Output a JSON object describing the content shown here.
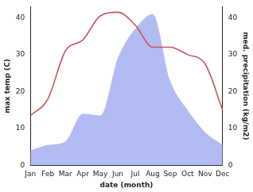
{
  "chart_data": {
    "type": "line",
    "x_label": "date (month)",
    "y_label": "max temp (C)",
    "y2_label": "med. precipitation (kg/m2)",
    "categories": [
      "Jan",
      "Feb",
      "Mar",
      "Apr",
      "May",
      "Jun",
      "Jul",
      "Aug",
      "Sep",
      "Oct",
      "Nov",
      "Dec"
    ],
    "series": [
      {
        "name": "med. precipitation",
        "type": "area",
        "axis": "y2",
        "color": "#b3bcf2",
        "values": [
          4,
          5.5,
          6.5,
          14,
          13.5,
          29,
          37,
          41,
          23,
          15,
          9,
          5.5
        ]
      },
      {
        "name": "max temp",
        "type": "line",
        "axis": "y",
        "color": "#c9545a",
        "values": [
          13.5,
          18,
          31,
          34,
          40.5,
          41.5,
          38,
          32,
          32,
          30,
          27.5,
          15
        ]
      }
    ],
    "ylim": [
      0,
      43
    ],
    "yticks": [
      0,
      10,
      20,
      30,
      40
    ],
    "y2lim": [
      0,
      43
    ],
    "y2ticks": [
      0,
      10,
      20,
      30,
      40
    ],
    "grid": false,
    "legend": false
  }
}
